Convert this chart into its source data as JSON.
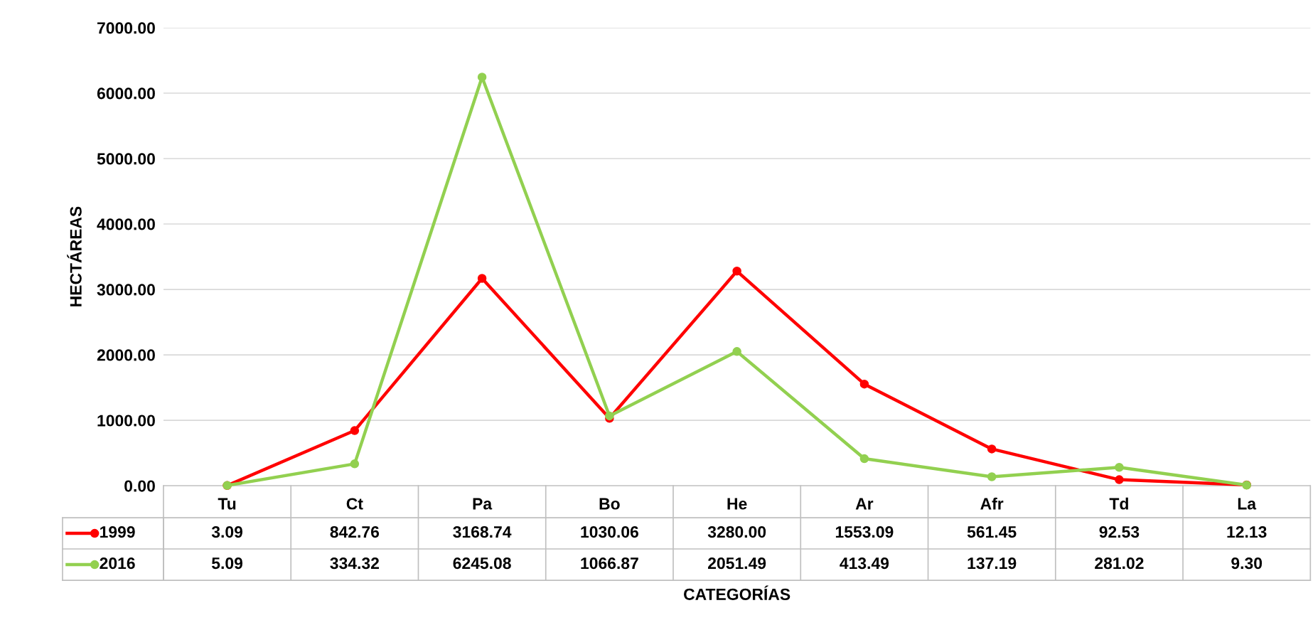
{
  "chart_data": {
    "type": "line",
    "xlabel": "CATEGORÍAS",
    "ylabel": "HECTÁREAS",
    "categories": [
      "Tu",
      "Ct",
      "Pa",
      "Bo",
      "He",
      "Ar",
      "Afr",
      "Td",
      "La"
    ],
    "series": [
      {
        "name": "1999",
        "color": "#ff0000",
        "values": [
          3.09,
          842.76,
          3168.74,
          1030.06,
          3280.0,
          1553.09,
          561.45,
          92.53,
          12.13
        ],
        "value_labels": [
          "3.09",
          "842.76",
          "3168.74",
          "1030.06",
          "3280.00",
          "1553.09",
          "561.45",
          "92.53",
          "12.13"
        ]
      },
      {
        "name": "2016",
        "color": "#92d050",
        "values": [
          5.09,
          334.32,
          6245.08,
          1066.87,
          2051.49,
          413.49,
          137.19,
          281.02,
          9.3
        ],
        "value_labels": [
          "5.09",
          "334.32",
          "6245.08",
          "1066.87",
          "2051.49",
          "413.49",
          "137.19",
          "281.02",
          "9.30"
        ]
      }
    ],
    "ylim": [
      0,
      7000
    ],
    "yticks": [
      {
        "value": 0,
        "label": "0.00"
      },
      {
        "value": 1000,
        "label": "1000.00"
      },
      {
        "value": 2000,
        "label": "2000.00"
      },
      {
        "value": 3000,
        "label": "3000.00"
      },
      {
        "value": 4000,
        "label": "4000.00"
      },
      {
        "value": 5000,
        "label": "5000.00"
      },
      {
        "value": 6000,
        "label": "6000.00"
      },
      {
        "value": 7000,
        "label": "7000.00"
      }
    ],
    "grid": "y",
    "marker": "circle",
    "line_style": "solid",
    "legend": "bottom"
  }
}
